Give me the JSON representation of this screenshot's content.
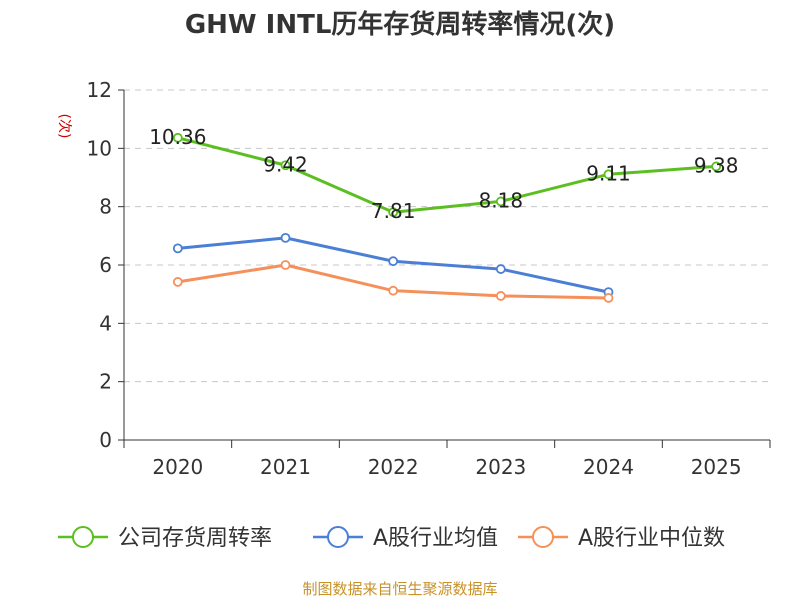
{
  "chart_data": {
    "type": "line",
    "title": "GHW INTL历年存货周转率情况(次)",
    "ylabel": "(次)",
    "categories": [
      "2020",
      "2021",
      "2022",
      "2023",
      "2024",
      "2025"
    ],
    "ylim": [
      0,
      12
    ],
    "yticks": [
      0,
      2,
      4,
      6,
      8,
      10,
      12
    ],
    "grid": true,
    "legend_position": "bottom",
    "series": [
      {
        "name": "公司存货周转率",
        "color": "#5bbf21",
        "values": [
          10.36,
          9.42,
          7.81,
          8.18,
          9.11,
          9.38
        ],
        "labels": [
          "10.36",
          "9.42",
          "7.81",
          "8.18",
          "9.11",
          "9.38"
        ]
      },
      {
        "name": "A股行业均值",
        "color": "#4b7fd6",
        "values": [
          6.57,
          6.93,
          6.13,
          5.86,
          5.07,
          null
        ]
      },
      {
        "name": "A股行业中位数",
        "color": "#f5905a",
        "values": [
          5.42,
          6.0,
          5.12,
          4.94,
          4.87,
          null
        ]
      }
    ]
  },
  "source": "制图数据来自恒生聚源数据库"
}
